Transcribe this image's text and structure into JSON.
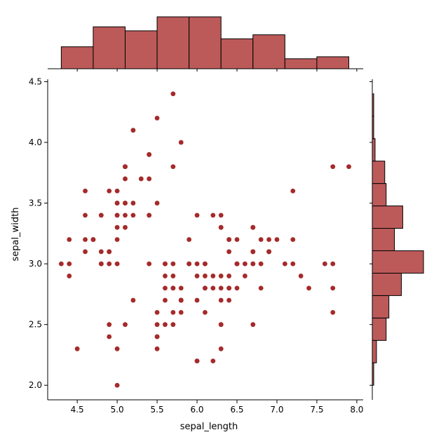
{
  "chart_data": {
    "type": "scatter",
    "kind": "jointplot",
    "xlabel": "sepal_length",
    "ylabel": "sepal_width",
    "xlim": [
      4.13,
      8.08
    ],
    "ylim": [
      1.88,
      4.52
    ],
    "xticks": [
      "4.5",
      "5.0",
      "5.5",
      "6.0",
      "6.5",
      "7.0",
      "7.5",
      "8.0"
    ],
    "yticks": [
      "2.0",
      "2.5",
      "3.0",
      "3.5",
      "4.0",
      "4.5"
    ],
    "grid": false,
    "colors": {
      "point": "#a52a2a",
      "hist_fill": "#bc5a5a",
      "hist_edge": "#000000"
    },
    "points": [
      [
        5.1,
        3.5
      ],
      [
        4.9,
        3.0
      ],
      [
        4.7,
        3.2
      ],
      [
        4.6,
        3.1
      ],
      [
        5.0,
        3.6
      ],
      [
        5.4,
        3.9
      ],
      [
        4.6,
        3.4
      ],
      [
        5.0,
        3.4
      ],
      [
        4.4,
        2.9
      ],
      [
        4.9,
        3.1
      ],
      [
        5.4,
        3.7
      ],
      [
        4.8,
        3.4
      ],
      [
        4.8,
        3.0
      ],
      [
        4.3,
        3.0
      ],
      [
        5.8,
        4.0
      ],
      [
        5.7,
        4.4
      ],
      [
        5.4,
        3.9
      ],
      [
        5.1,
        3.5
      ],
      [
        5.7,
        3.8
      ],
      [
        5.1,
        3.8
      ],
      [
        5.4,
        3.4
      ],
      [
        5.1,
        3.7
      ],
      [
        4.6,
        3.6
      ],
      [
        5.1,
        3.3
      ],
      [
        4.8,
        3.4
      ],
      [
        5.0,
        3.0
      ],
      [
        5.0,
        3.4
      ],
      [
        5.2,
        3.5
      ],
      [
        5.2,
        3.4
      ],
      [
        4.7,
        3.2
      ],
      [
        4.8,
        3.1
      ],
      [
        5.4,
        3.4
      ],
      [
        5.2,
        4.1
      ],
      [
        5.5,
        4.2
      ],
      [
        4.9,
        3.1
      ],
      [
        5.0,
        3.2
      ],
      [
        5.5,
        3.5
      ],
      [
        4.9,
        3.6
      ],
      [
        4.4,
        3.0
      ],
      [
        5.1,
        3.4
      ],
      [
        5.0,
        3.5
      ],
      [
        4.5,
        2.3
      ],
      [
        4.4,
        3.2
      ],
      [
        5.0,
        3.5
      ],
      [
        5.1,
        3.8
      ],
      [
        4.8,
        3.0
      ],
      [
        5.1,
        3.8
      ],
      [
        4.6,
        3.2
      ],
      [
        5.3,
        3.7
      ],
      [
        5.0,
        3.3
      ],
      [
        7.0,
        3.2
      ],
      [
        6.4,
        3.2
      ],
      [
        6.9,
        3.1
      ],
      [
        5.5,
        2.3
      ],
      [
        6.5,
        2.8
      ],
      [
        5.7,
        2.8
      ],
      [
        6.3,
        3.3
      ],
      [
        4.9,
        2.4
      ],
      [
        6.6,
        2.9
      ],
      [
        5.2,
        2.7
      ],
      [
        5.0,
        2.0
      ],
      [
        5.9,
        3.0
      ],
      [
        6.0,
        2.2
      ],
      [
        6.1,
        2.9
      ],
      [
        5.6,
        2.9
      ],
      [
        6.7,
        3.1
      ],
      [
        5.6,
        3.0
      ],
      [
        5.8,
        2.7
      ],
      [
        6.2,
        2.2
      ],
      [
        5.6,
        2.5
      ],
      [
        5.9,
        3.2
      ],
      [
        6.1,
        2.8
      ],
      [
        6.3,
        2.5
      ],
      [
        6.1,
        2.8
      ],
      [
        6.4,
        2.9
      ],
      [
        6.6,
        3.0
      ],
      [
        6.8,
        2.8
      ],
      [
        6.7,
        3.0
      ],
      [
        6.0,
        2.9
      ],
      [
        5.7,
        2.6
      ],
      [
        5.5,
        2.4
      ],
      [
        5.5,
        2.4
      ],
      [
        5.8,
        2.7
      ],
      [
        6.0,
        2.7
      ],
      [
        5.4,
        3.0
      ],
      [
        6.0,
        3.4
      ],
      [
        6.7,
        3.1
      ],
      [
        6.3,
        2.3
      ],
      [
        5.6,
        3.0
      ],
      [
        5.5,
        2.5
      ],
      [
        5.5,
        2.6
      ],
      [
        6.1,
        3.0
      ],
      [
        5.8,
        2.6
      ],
      [
        5.0,
        2.3
      ],
      [
        5.6,
        2.7
      ],
      [
        5.7,
        3.0
      ],
      [
        5.7,
        2.9
      ],
      [
        6.2,
        2.9
      ],
      [
        5.1,
        2.5
      ],
      [
        5.7,
        2.8
      ],
      [
        6.3,
        3.3
      ],
      [
        5.8,
        2.7
      ],
      [
        7.1,
        3.0
      ],
      [
        6.3,
        2.9
      ],
      [
        6.5,
        3.0
      ],
      [
        7.6,
        3.0
      ],
      [
        4.9,
        2.5
      ],
      [
        7.3,
        2.9
      ],
      [
        6.7,
        2.5
      ],
      [
        7.2,
        3.6
      ],
      [
        6.5,
        3.2
      ],
      [
        6.4,
        2.7
      ],
      [
        6.8,
        3.0
      ],
      [
        5.7,
        2.5
      ],
      [
        5.8,
        2.8
      ],
      [
        6.4,
        3.2
      ],
      [
        6.5,
        3.0
      ],
      [
        7.7,
        3.8
      ],
      [
        7.7,
        2.6
      ],
      [
        6.0,
        2.2
      ],
      [
        6.9,
        3.2
      ],
      [
        5.6,
        2.8
      ],
      [
        7.7,
        2.8
      ],
      [
        6.3,
        2.7
      ],
      [
        6.7,
        3.3
      ],
      [
        7.2,
        3.2
      ],
      [
        6.2,
        2.8
      ],
      [
        6.1,
        3.0
      ],
      [
        6.4,
        2.8
      ],
      [
        7.2,
        3.0
      ],
      [
        7.4,
        2.8
      ],
      [
        7.9,
        3.8
      ],
      [
        6.4,
        2.8
      ],
      [
        6.3,
        2.8
      ],
      [
        6.1,
        2.6
      ],
      [
        7.7,
        3.0
      ],
      [
        6.3,
        3.4
      ],
      [
        6.4,
        3.1
      ],
      [
        6.0,
        3.0
      ],
      [
        6.9,
        3.1
      ],
      [
        6.7,
        3.1
      ],
      [
        6.9,
        3.1
      ],
      [
        5.8,
        2.7
      ],
      [
        6.8,
        3.2
      ],
      [
        6.7,
        3.3
      ],
      [
        6.7,
        3.0
      ],
      [
        6.3,
        2.5
      ],
      [
        6.5,
        3.0
      ],
      [
        6.2,
        3.4
      ],
      [
        5.9,
        3.0
      ]
    ],
    "x_histogram": {
      "edges": [
        4.3,
        4.7,
        5.1,
        5.5,
        5.9,
        6.3,
        6.7,
        7.1,
        7.5,
        7.9
      ],
      "counts": [
        11,
        21,
        19,
        26,
        26,
        15,
        17,
        5,
        6
      ]
    },
    "y_histogram": {
      "edges": [
        2.0,
        2.1846,
        2.3692,
        2.5538,
        2.7385,
        2.9231,
        3.1077,
        3.2923,
        3.4769,
        3.6615,
        3.8462,
        4.0308,
        4.2154,
        4.4
      ],
      "counts": [
        1,
        3,
        10,
        12,
        21,
        37,
        16,
        22,
        10,
        9,
        2,
        1,
        1
      ]
    }
  }
}
